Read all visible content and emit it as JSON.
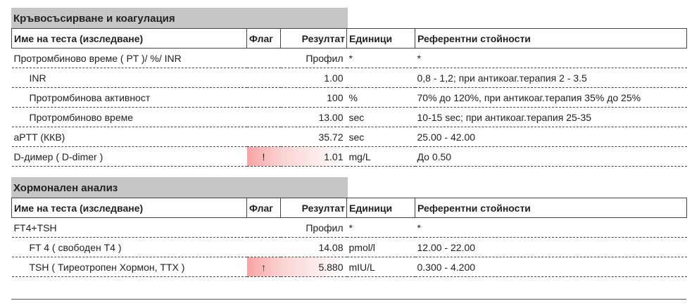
{
  "headers": {
    "name": "Име на теста (изследване)",
    "flag": "Флаг",
    "result": "Резултат",
    "units": "Единици",
    "reference": "Референтни стойности"
  },
  "sections": [
    {
      "title": "Кръвосъсирване и коагулация",
      "rows": [
        {
          "name": "Протромбиново време ( PT )/ %/ INR",
          "flag": "",
          "result": "Профил",
          "units": "*",
          "reference": "*"
        },
        {
          "name": "INR",
          "flag": "",
          "result": "1.00",
          "units": "",
          "reference": "0,8 - 1,2; при антикоаг.терапия 2 - 3.5"
        },
        {
          "name": "Протромбинова активност",
          "flag": "",
          "result": "100",
          "units": "%",
          "reference": "70% до 120%, при антикоаг.терапия 35% до 25%"
        },
        {
          "name": "Протромбиново време",
          "flag": "",
          "result": "13.00",
          "units": "sec",
          "reference": "10-15 sec; при антикоаг.терапия 25-35"
        },
        {
          "name": "aPTT (ККВ)",
          "flag": "",
          "result": "35.72",
          "units": "sec",
          "reference": "25.00 - 42.00"
        },
        {
          "name": "D-димер ( D-dimer )",
          "flag": "!",
          "result": "1.01",
          "units": "mg/L",
          "reference": "До 0.50"
        }
      ]
    },
    {
      "title": "Хормонален анализ",
      "rows": [
        {
          "name": "FT4+TSH",
          "flag": "",
          "result": "Профил",
          "units": "*",
          "reference": "*"
        },
        {
          "name": "FT 4 ( свободен Т4 )",
          "flag": "",
          "result": "14.08",
          "units": "pmol/l",
          "reference": "12.00 - 22.00"
        },
        {
          "name": "TSH ( Тиреотропен Хормон, ТТХ )",
          "flag": "↑",
          "result": "5.880",
          "units": "mIU/L",
          "reference": "0.300 - 4.200"
        }
      ]
    }
  ]
}
